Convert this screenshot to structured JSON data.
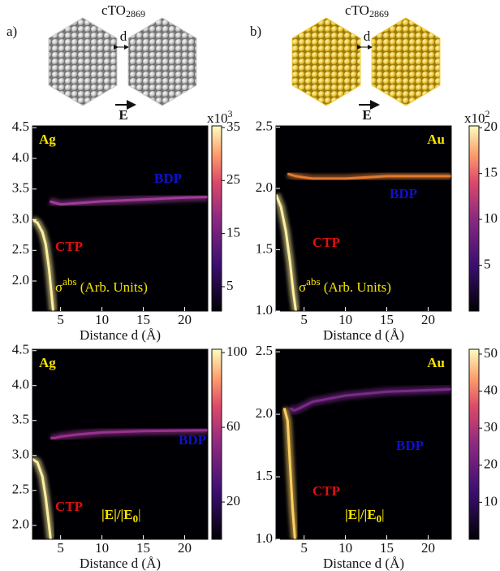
{
  "header": {
    "panels": [
      {
        "letter": "a)",
        "cluster": "cTO",
        "cluster_sub": "2869",
        "gap": "d",
        "field": "E",
        "cluster_color": "#c8c8c8"
      },
      {
        "letter": "b)",
        "cluster": "cTO",
        "cluster_sub": "2869",
        "gap": "d",
        "field": "E",
        "cluster_color": "#f0d040"
      }
    ]
  },
  "chart_data": [
    {
      "type": "heatmap",
      "label": "Ag",
      "xlabel": "Distance d (Å)",
      "xlim": [
        1.6,
        22.8
      ],
      "xticks": [
        5,
        10,
        15,
        20
      ],
      "ylim": [
        1.51,
        4.53
      ],
      "yticks": [
        {
          "value": 2,
          "label": "2.0"
        },
        2.5,
        {
          "value": 3,
          "label": "3.0"
        },
        3.5,
        {
          "value": 4,
          "label": "4.0"
        },
        4.5
      ],
      "quantity": {
        "main": "σ",
        "sup": "abs",
        "rest": " (Arb. Units)"
      },
      "colorbar": {
        "lim": [
          0.4,
          35.3
        ],
        "ticks": [
          5,
          15,
          25,
          35
        ],
        "base": "x10",
        "exponent": "3"
      },
      "series": [
        {
          "name": "CTP",
          "color": "#fff0a0",
          "label_color": "#e01010",
          "x": [
            1.6,
            2.2,
            2.8,
            3.2,
            3.6,
            3.9,
            4.1
          ],
          "values": [
            3.0,
            2.95,
            2.8,
            2.6,
            2.2,
            1.8,
            1.51
          ]
        },
        {
          "name": "BDP",
          "color": "#a03c9a",
          "label_color": "#1010d0",
          "x": [
            3.7,
            4.2,
            5,
            7,
            10,
            15,
            20,
            22.8
          ],
          "values": [
            3.3,
            3.28,
            3.25,
            3.27,
            3.3,
            3.33,
            3.36,
            3.37
          ]
        }
      ]
    },
    {
      "type": "heatmap",
      "label": "Au",
      "xlabel": "Distance d (Å)",
      "xlim": [
        1.6,
        22.8
      ],
      "xticks": [
        5,
        10,
        15,
        20
      ],
      "ylim": [
        1.0,
        2.51
      ],
      "yticks": [
        {
          "value": 1,
          "label": "1.0"
        },
        1.5,
        {
          "value": 2,
          "label": "2.0"
        },
        2.5
      ],
      "quantity": {
        "main": "σ",
        "sup": "abs",
        "rest": " (Arb. Units)"
      },
      "colorbar": {
        "lim": [
          0,
          20.2
        ],
        "ticks": [
          5,
          10,
          15,
          20
        ],
        "base": "x10",
        "exponent": "2"
      },
      "series": [
        {
          "name": "CTP",
          "color": "#fff0a0",
          "label_color": "#e01010",
          "x": [
            1.6,
            2.2,
            2.8,
            3.3,
            3.7,
            4.0
          ],
          "values": [
            1.95,
            1.85,
            1.65,
            1.4,
            1.15,
            1.0
          ]
        },
        {
          "name": "BDP",
          "color": "#e07a30",
          "label_color": "#1010d0",
          "x": [
            3,
            4,
            6,
            10,
            15,
            22.8
          ],
          "values": [
            2.12,
            2.1,
            2.08,
            2.08,
            2.1,
            2.1
          ]
        }
      ]
    },
    {
      "type": "heatmap",
      "label": "Ag",
      "xlabel": "Distance d (Å)",
      "xlim": [
        1.6,
        22.8
      ],
      "xticks": [
        5,
        10,
        15,
        20
      ],
      "ylim": [
        1.8,
        4.52
      ],
      "yticks": [
        {
          "value": 2,
          "label": "2.0"
        },
        2.5,
        {
          "value": 3,
          "label": "3.0"
        },
        3.5,
        {
          "value": 4,
          "label": "4.0"
        },
        4.5
      ],
      "quantity": {
        "main": "|E|/|E",
        "sub": "0",
        "rest": "|"
      },
      "colorbar": {
        "lim": [
          0,
          101.8
        ],
        "ticks": [
          20,
          60,
          100
        ]
      },
      "series": [
        {
          "name": "CTP",
          "color": "#fff0a0",
          "label_color": "#e01010",
          "x": [
            1.6,
            2.2,
            2.8,
            3.2,
            3.5,
            3.8
          ],
          "values": [
            2.95,
            2.9,
            2.7,
            2.4,
            2.1,
            1.8
          ]
        },
        {
          "name": "BDP",
          "color": "#9a3090",
          "label_color": "#1010d0",
          "x": [
            3.8,
            4.3,
            5,
            7,
            10,
            15,
            22.8
          ],
          "values": [
            3.25,
            3.25,
            3.27,
            3.3,
            3.33,
            3.35,
            3.36
          ]
        }
      ]
    },
    {
      "type": "heatmap",
      "label": "Au",
      "xlabel": "Distance d (Å)",
      "xlim": [
        1.6,
        22.8
      ],
      "xticks": [
        5,
        10,
        15,
        20
      ],
      "ylim": [
        1.0,
        2.52
      ],
      "yticks": [
        {
          "value": 1,
          "label": "1.0"
        },
        1.5,
        {
          "value": 2,
          "label": "2.0"
        },
        2.5
      ],
      "quantity": {
        "main": "|E|/|E",
        "sub": "0",
        "rest": "|"
      },
      "colorbar": {
        "lim": [
          0,
          51.3
        ],
        "ticks": [
          10,
          20,
          30,
          40,
          50
        ]
      },
      "series": [
        {
          "name": "CTP",
          "color": "#ffd060",
          "label_color": "#e01010",
          "x": [
            2.6,
            3,
            3.3,
            3.6,
            3.9
          ],
          "values": [
            2.05,
            1.95,
            1.6,
            1.25,
            1.0
          ]
        },
        {
          "name": "BDP",
          "color": "#7a2a8a",
          "label_color": "#1010d0",
          "x": [
            3.3,
            3.8,
            4.5,
            6,
            10,
            15,
            22.8
          ],
          "values": [
            2.05,
            2.03,
            2.05,
            2.1,
            2.15,
            2.18,
            2.2
          ]
        }
      ]
    }
  ]
}
